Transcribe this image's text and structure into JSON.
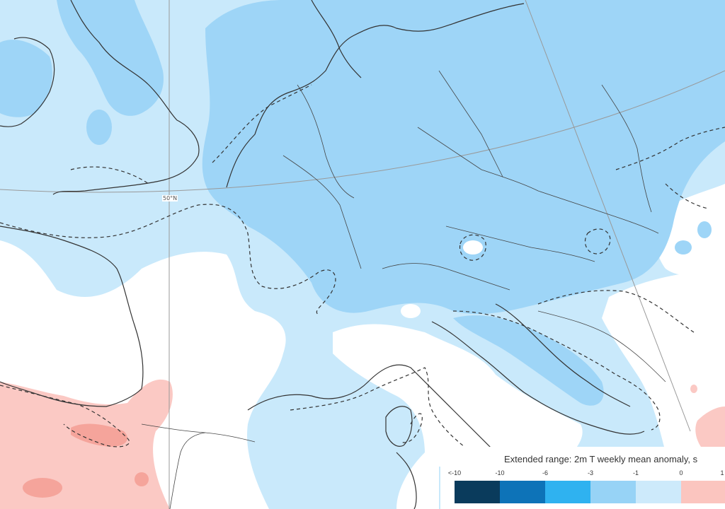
{
  "map": {
    "latitude_label": "50°N",
    "colors": {
      "strong_cold": "#9ed5f7",
      "mild_cold": "#c9e9fb",
      "warm": "#fbc9c4",
      "warmer": "#f5a49b",
      "coast": "#333333",
      "grid": "#999999",
      "ocean_white": "#ffffff"
    }
  },
  "legend": {
    "title": "Extended range: 2m T weekly mean anomaly, s",
    "ticks": [
      "<-10",
      "-10",
      "-6",
      "-3",
      "-1",
      "0",
      "1"
    ],
    "swatches": [
      {
        "color": "#0a3b5c"
      },
      {
        "color": "#0d73b8"
      },
      {
        "color": "#2fb2f0"
      },
      {
        "color": "#97d3f6"
      },
      {
        "color": "#cdeafb"
      },
      {
        "color": "#fbc5bf"
      }
    ]
  }
}
